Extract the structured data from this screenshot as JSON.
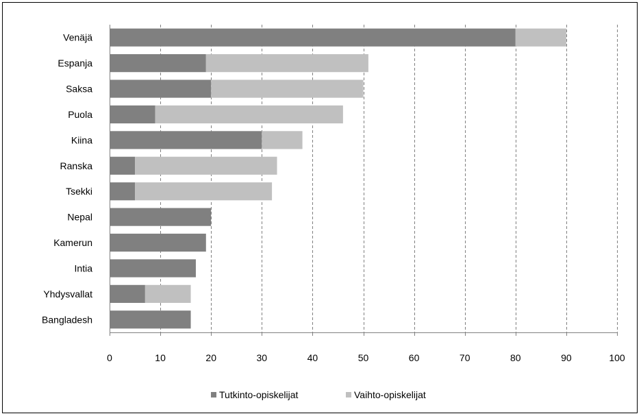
{
  "chart_data": {
    "type": "bar",
    "orientation": "horizontal",
    "stacked": true,
    "categories": [
      "Venäjä",
      "Espanja",
      "Saksa",
      "Puola",
      "Kiina",
      "Ranska",
      "Tsekki",
      "Nepal",
      "Kamerun",
      "Intia",
      "Yhdysvallat",
      "Bangladesh"
    ],
    "series": [
      {
        "name": "Tutkinto-opiskelijat",
        "color": "#808080",
        "values": [
          80,
          19,
          20,
          9,
          30,
          5,
          5,
          20,
          19,
          17,
          7,
          16
        ]
      },
      {
        "name": "Vaihto-opiskelijat",
        "color": "#c0c0c0",
        "values": [
          10,
          32,
          30,
          37,
          8,
          28,
          27,
          0,
          0,
          0,
          9,
          0
        ]
      }
    ],
    "xlim": [
      0,
      100
    ],
    "xticks": [
      0,
      10,
      20,
      30,
      40,
      50,
      60,
      70,
      80,
      90,
      100
    ],
    "grid": "vertical dashed",
    "legend_position": "bottom"
  }
}
